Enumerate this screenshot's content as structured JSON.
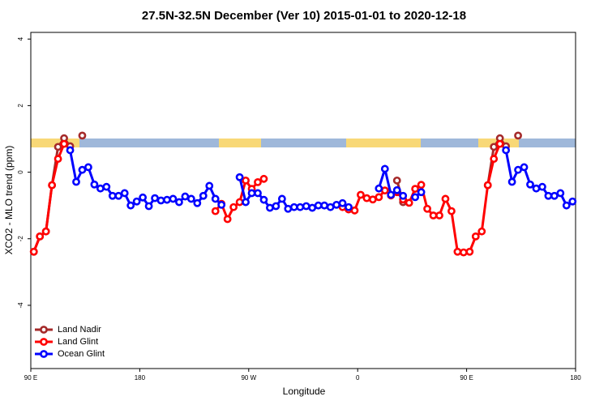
{
  "chart_data": {
    "type": "line",
    "title": "27.5N-32.5N December (Ver 10)   2015-01-01 to 2020-12-18",
    "x_label": "Longitude",
    "y_label": "XCO2 - MLO trend (ppm)",
    "xlim": [
      90,
      540
    ],
    "ylim": [
      -5.9,
      4.2
    ],
    "xticks": [
      {
        "value": 90,
        "label": "90 E"
      },
      180,
      {
        "value": 270,
        "label": "90 W"
      },
      {
        "value": 360,
        "label": "0"
      },
      {
        "value": 450,
        "label": "90 E"
      },
      {
        "value": 540,
        "label": "180"
      }
    ],
    "yticks": [
      -4,
      -2,
      0,
      2,
      4
    ],
    "legend": "bottomleft",
    "series": [
      {
        "name": "Land Nadir",
        "color": "#a52a2a",
        "x": [
          92.5,
          97.5,
          102.5,
          107.5,
          112.5,
          117.5,
          122.5,
          127.5,
          132.5,
          387.5,
          392.5,
          397.5,
          462.5,
          467.5,
          472.5,
          477.5,
          482.5,
          487.5,
          492.5
        ],
        "values": [
          -2.39,
          -1.93,
          -1.78,
          -0.39,
          0.76,
          1.02,
          0.78,
          null,
          1.1,
          null,
          -0.25,
          -0.9,
          null,
          -0.39,
          0.76,
          1.02,
          0.78,
          null,
          1.1
        ]
      },
      {
        "name": "Land Glint",
        "color": "#ff0000",
        "x": [
          92.5,
          97.5,
          102.5,
          107.5,
          112.5,
          117.5,
          122.5,
          242.5,
          247.5,
          252.5,
          257.5,
          262.5,
          267.5,
          272.5,
          277.5,
          282.5,
          287.5,
          347.5,
          352.5,
          357.5,
          362.5,
          367.5,
          372.5,
          377.5,
          382.5,
          387.5,
          392.5,
          397.5,
          402.5,
          407.5,
          412.5,
          417.5,
          422.5,
          427.5,
          432.5,
          437.5,
          442.5,
          447.5,
          452.5,
          457.5,
          462.5,
          467.5,
          472.5,
          477.5
        ],
        "values": [
          -2.39,
          -1.93,
          -1.78,
          -0.39,
          0.4,
          0.85,
          null,
          -1.17,
          -0.95,
          -1.41,
          -1.05,
          -0.9,
          -0.25,
          -0.5,
          -0.3,
          -0.2,
          null,
          -1.05,
          -1.12,
          -1.15,
          -0.68,
          -0.78,
          -0.82,
          -0.75,
          -0.55,
          -0.7,
          -0.6,
          -0.82,
          -0.92,
          -0.5,
          -0.38,
          -1.1,
          -1.3,
          -1.3,
          -0.8,
          -1.17,
          -2.39,
          -2.41,
          -2.39,
          -1.93,
          -1.78,
          -0.39,
          0.4,
          0.85
        ]
      },
      {
        "name": "Ocean Glint",
        "color": "#0000ff",
        "x": [
          122.5,
          127.5,
          132.5,
          137.5,
          142.5,
          147.5,
          152.5,
          157.5,
          162.5,
          167.5,
          172.5,
          177.5,
          182.5,
          187.5,
          192.5,
          197.5,
          202.5,
          207.5,
          212.5,
          217.5,
          222.5,
          227.5,
          232.5,
          237.5,
          242.5,
          247.5,
          252.5,
          262.5,
          267.5,
          272.5,
          277.5,
          282.5,
          287.5,
          292.5,
          297.5,
          302.5,
          307.5,
          312.5,
          317.5,
          322.5,
          327.5,
          332.5,
          337.5,
          342.5,
          347.5,
          352.5,
          357.5,
          377.5,
          382.5,
          387.5,
          392.5,
          397.5,
          402.5,
          407.5,
          412.5,
          417.5,
          482.5,
          487.5,
          492.5,
          497.5,
          502.5,
          507.5,
          512.5,
          517.5,
          522.5,
          527.5,
          532.5,
          537.5
        ],
        "values": [
          0.66,
          -0.29,
          0.07,
          0.15,
          -0.37,
          -0.49,
          -0.44,
          -0.71,
          -0.71,
          -0.63,
          -1.0,
          -0.88,
          -0.76,
          -1.02,
          -0.78,
          -0.85,
          -0.83,
          -0.8,
          -0.9,
          -0.73,
          -0.8,
          -0.93,
          -0.71,
          -0.41,
          -0.8,
          -0.98,
          null,
          -0.15,
          -0.9,
          -0.63,
          -0.63,
          -0.83,
          -1.07,
          -1.02,
          -0.8,
          -1.1,
          -1.05,
          -1.05,
          -1.02,
          -1.07,
          -1.0,
          -1.0,
          -1.05,
          -0.98,
          -0.93,
          -1.05,
          null,
          -0.49,
          0.1,
          -0.68,
          -0.54,
          -0.71,
          null,
          -0.75,
          -0.6,
          null,
          0.66,
          -0.29,
          0.07,
          0.15,
          -0.37,
          -0.49,
          -0.44,
          -0.71,
          -0.71,
          -0.63,
          -1.0,
          -0.88
        ]
      }
    ]
  }
}
